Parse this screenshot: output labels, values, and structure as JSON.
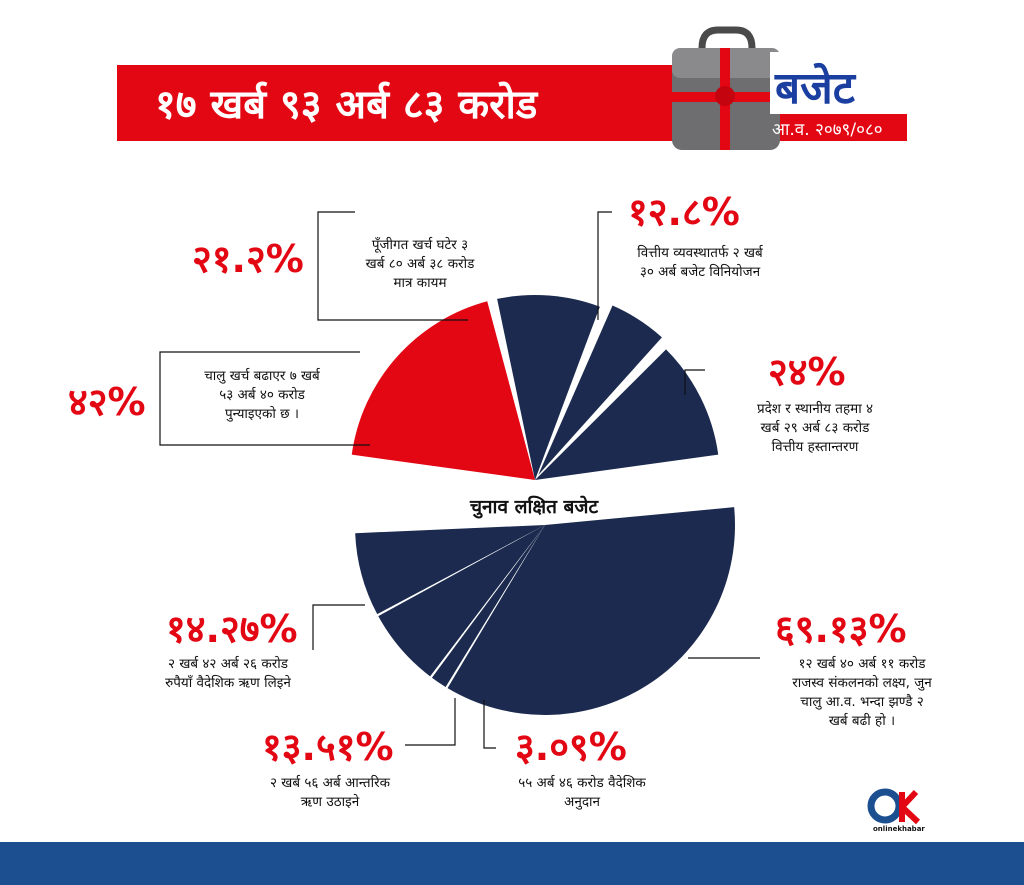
{
  "header": {
    "title": "१७ खर्ब ९३ अर्ब ८३ करोड",
    "budget_label": "बजेट",
    "fiscal_year": "आ.व. २०७९/०८०"
  },
  "center_label": "चुनाव लक्षित बजेट",
  "logo": {
    "text": "onlinekhabar"
  },
  "colors": {
    "red": "#e30613",
    "navy": "#1b2a4e",
    "banner": "#e30613",
    "footer": "#1b4f8f"
  },
  "chart_data": [
    {
      "type": "pie",
      "name": "expenditure",
      "slices": [
        {
          "percent_label": "४२%",
          "value": 42,
          "color": "#e30613",
          "lines": [
            "चालु खर्च बढाएर ७ खर्ब",
            "५३ अर्ब ४० करोड",
            "पुन्याइएको छ ।"
          ]
        },
        {
          "percent_label": "२१.२%",
          "value": 21.2,
          "color": "#1b2a4e",
          "lines": [
            "पूँजीगत खर्च घटेर ३",
            "खर्ब ८० अर्ब ३८ करोड",
            "मात्र कायम"
          ]
        },
        {
          "percent_label": "१२.८%",
          "value": 12.8,
          "color": "#1b2a4e",
          "lines": [
            "वित्तीय व्यवस्थातर्फ २ खर्ब",
            "३० अर्ब बजेट विनियोजन"
          ]
        },
        {
          "percent_label": "२४%",
          "value": 24,
          "color": "#1b2a4e",
          "lines": [
            "प्रदेश र स्थानीय तहमा ४",
            "खर्ब २९ अर्ब ८३ करोड",
            "वित्तीय हस्तान्तरण"
          ]
        }
      ]
    },
    {
      "type": "pie",
      "name": "financing",
      "slices": [
        {
          "percent_label": "६९.१३%",
          "value": 69.13,
          "color": "#1b2a4e",
          "lines": [
            "१२ खर्ब ४० अर्ब ११ करोड",
            "राजस्व संकलनको लक्ष्य, जुन",
            "चालु आ.व. भन्दा झण्डै २",
            "खर्ब बढी हो ।"
          ]
        },
        {
          "percent_label": "३.०९%",
          "value": 3.09,
          "color": "#1b2a4e",
          "lines": [
            "५५ अर्ब ४६ करोड वैदेशिक",
            "अनुदान"
          ]
        },
        {
          "percent_label": "१३.५१%",
          "value": 13.51,
          "color": "#1b2a4e",
          "lines": [
            "२ खर्ब ५६ अर्ब आन्तरिक",
            "ऋण उठाइने"
          ]
        },
        {
          "percent_label": "१४.२७%",
          "value": 14.27,
          "color": "#1b2a4e",
          "lines": [
            "२ खर्ब ४२ अर्ब २६ करोड",
            "रुपैयाँ वैदेशिक ऋण लिइने"
          ]
        }
      ]
    }
  ]
}
